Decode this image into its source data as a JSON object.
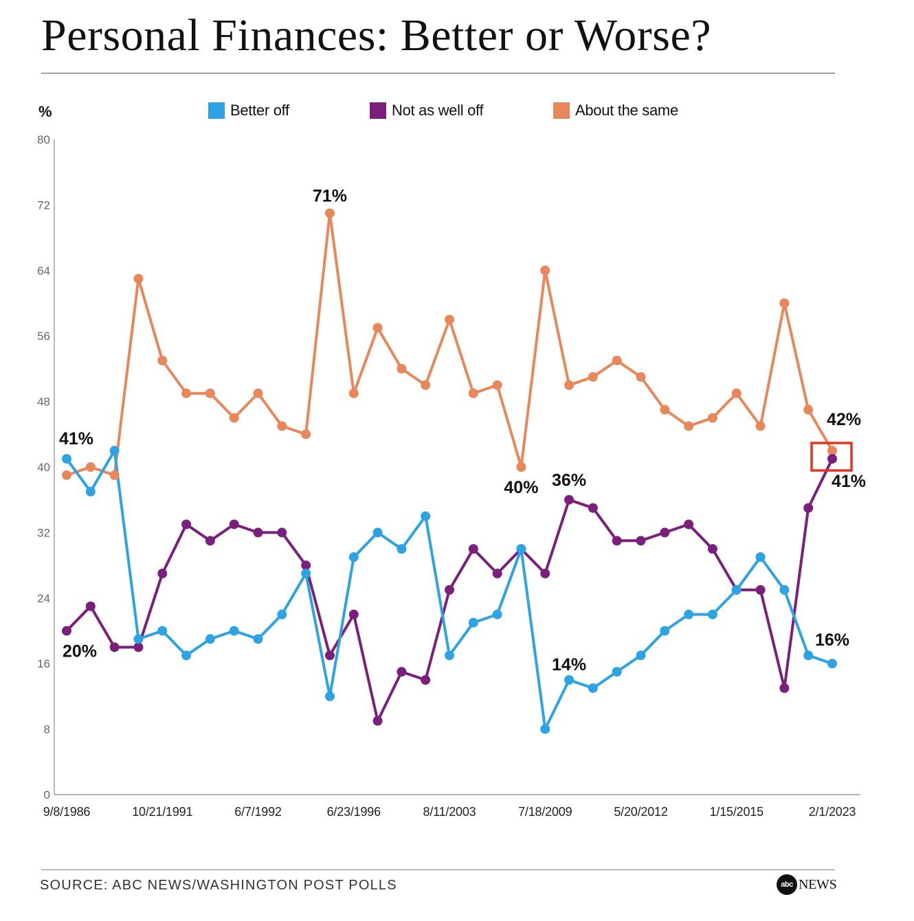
{
  "title": "Personal Finances: Better or Worse?",
  "source": "SOURCE: ABC NEWS/WASHINGTON POST POLLS",
  "logo": {
    "mark": "abc",
    "text": "NEWS"
  },
  "chart_data": {
    "type": "line",
    "title": "Personal Finances: Better or Worse?",
    "ylabel": "%",
    "ylim": [
      0,
      80
    ],
    "y_ticks": [
      0,
      8,
      16,
      24,
      32,
      40,
      48,
      56,
      64,
      72,
      80
    ],
    "x_tick_labels": [
      {
        "label": "9/8/1986",
        "index": 0
      },
      {
        "label": "10/21/1991",
        "index": 4
      },
      {
        "label": "6/7/1992",
        "index": 8
      },
      {
        "label": "6/23/1996",
        "index": 12
      },
      {
        "label": "8/11/2003",
        "index": 16
      },
      {
        "label": "7/18/2009",
        "index": 20
      },
      {
        "label": "5/20/2012",
        "index": 24
      },
      {
        "label": "1/15/2015",
        "index": 28
      },
      {
        "label": "2/1/2023",
        "index": 32
      }
    ],
    "n_points": 33,
    "legend_position": "top",
    "series": [
      {
        "name": "Better off",
        "color": "#2ea3e3",
        "values": [
          41,
          37,
          42,
          19,
          20,
          17,
          19,
          20,
          19,
          22,
          27,
          12,
          29,
          32,
          30,
          34,
          17,
          21,
          22,
          30,
          8,
          14,
          13,
          15,
          17,
          20,
          22,
          22,
          25,
          29,
          25,
          17,
          16
        ]
      },
      {
        "name": "Not as well off",
        "color": "#7b1f7c",
        "values": [
          20,
          23,
          18,
          18,
          27,
          33,
          31,
          33,
          32,
          32,
          28,
          17,
          22,
          9,
          15,
          14,
          25,
          30,
          27,
          30,
          27,
          36,
          35,
          31,
          31,
          32,
          33,
          30,
          25,
          25,
          13,
          35,
          41
        ]
      },
      {
        "name": "About the same",
        "color": "#e8875a",
        "values": [
          39,
          40,
          39,
          63,
          53,
          49,
          49,
          46,
          49,
          45,
          44,
          71,
          49,
          57,
          52,
          50,
          58,
          49,
          50,
          40,
          64,
          50,
          51,
          53,
          51,
          47,
          45,
          46,
          49,
          45,
          60,
          47,
          42
        ]
      }
    ],
    "annotations": [
      {
        "text": "41%",
        "series": 0,
        "index": 0
      },
      {
        "text": "20%",
        "series": 1,
        "index": 0
      },
      {
        "text": "71%",
        "series": 2,
        "index": 11
      },
      {
        "text": "40%",
        "series": 2,
        "index": 19
      },
      {
        "text": "36%",
        "series": 1,
        "index": 21
      },
      {
        "text": "14%",
        "series": 0,
        "index": 21
      },
      {
        "text": "42%",
        "series": 2,
        "index": 32
      },
      {
        "text": "41%",
        "series": 1,
        "index": 32
      },
      {
        "text": "16%",
        "series": 0,
        "index": 32
      }
    ],
    "highlight_box": {
      "index": 32,
      "color": "#e8321e"
    }
  }
}
